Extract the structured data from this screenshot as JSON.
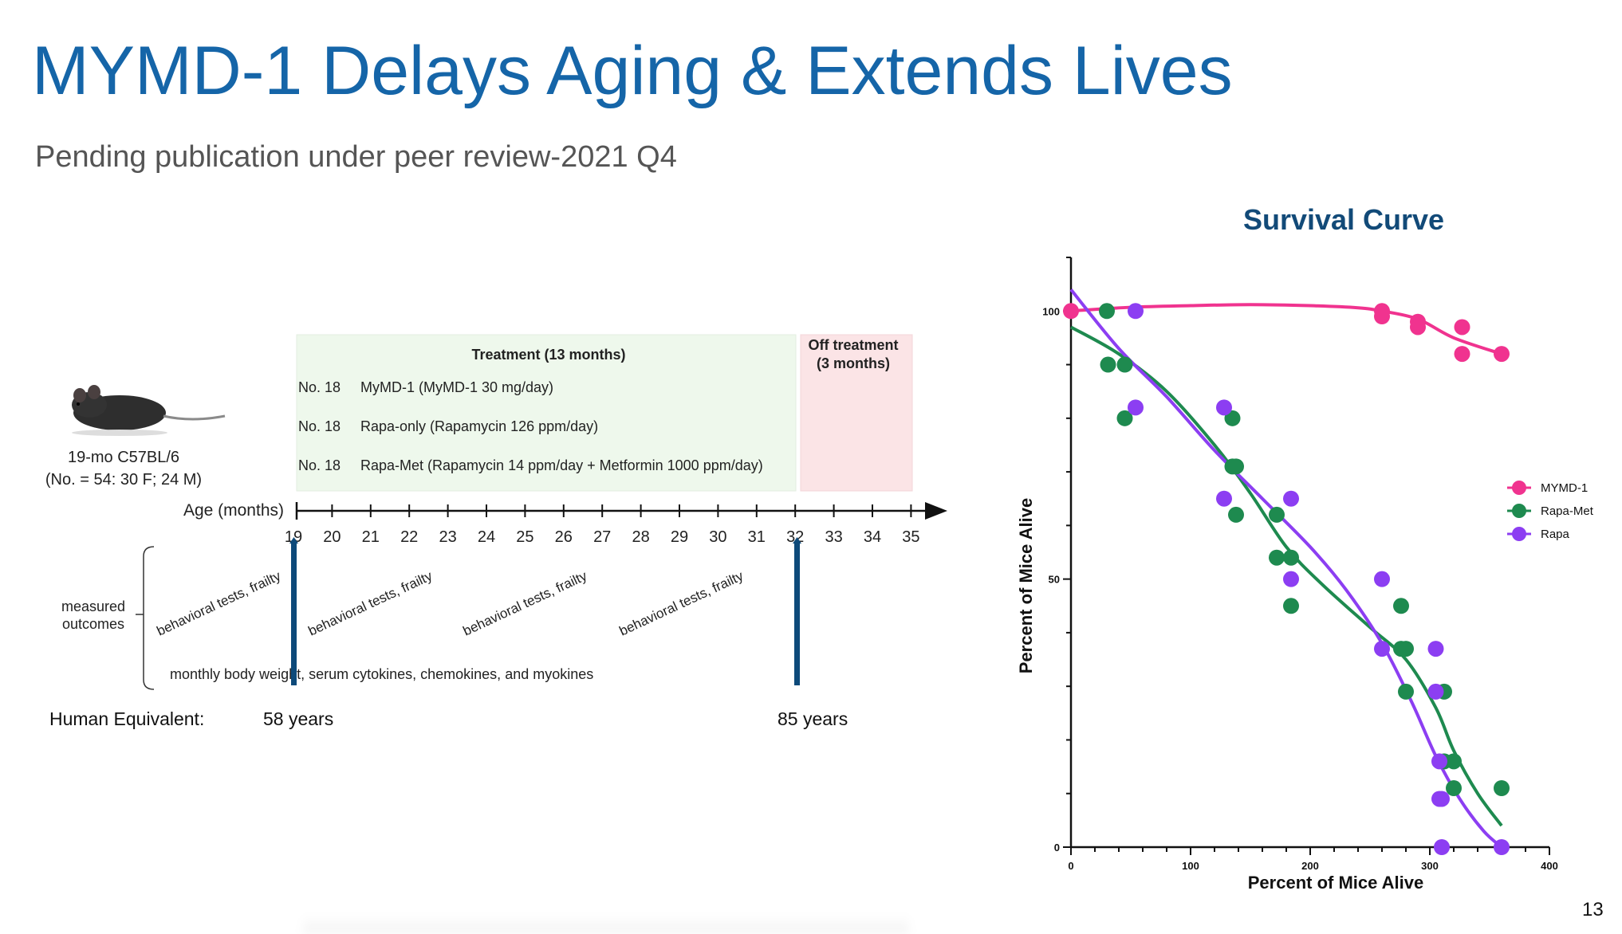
{
  "slide": {
    "title": "MYMD-1 Delays Aging & Extends Lives",
    "subtitle": "Pending publication under peer review-2021 Q4",
    "page_number": "13"
  },
  "study": {
    "mouse_label_1": "19-mo C57BL/6",
    "mouse_label_2": "(No. = 54: 30 F; 24 M)",
    "treatment_header": "Treatment (13 months)",
    "off_header_1": "Off treatment",
    "off_header_2": "(3 months)",
    "groups": [
      {
        "n": "No. 18",
        "desc": "MyMD-1 (MyMD-1 30 mg/day)"
      },
      {
        "n": "No. 18",
        "desc": "Rapa-only (Rapamycin 126 ppm/day)"
      },
      {
        "n": "No. 18",
        "desc": "Rapa-Met (Rapamycin 14 ppm/day + Metformin 1000 ppm/day)"
      }
    ],
    "age_label": "Age (months)",
    "ages": [
      "19",
      "20",
      "21",
      "22",
      "23",
      "24",
      "25",
      "26",
      "27",
      "28",
      "29",
      "30",
      "31",
      "32",
      "33",
      "34",
      "35"
    ],
    "measured_1": "measured",
    "measured_2": "outcomes",
    "behavioral": "behavioral tests, frailty",
    "monthly": "monthly body weight, serum cytokines, chemokines, and myokines",
    "human_label": "Human Equivalent:",
    "human_58": "58 years",
    "human_85": "85 years",
    "colors": {
      "treatment_bg": "#eef8ec",
      "off_bg": "#fbe4e6",
      "marker": "#0d4a7a"
    }
  },
  "chart_data": {
    "type": "scatter",
    "title": "Survival Curve",
    "xlabel": "Percent of Mice Alive",
    "ylabel": "Percent of Mice Alive",
    "xlim": [
      0,
      400
    ],
    "ylim": [
      0,
      110
    ],
    "xticks": [
      "0",
      "100",
      "200",
      "300",
      "400"
    ],
    "yticks": [
      "0",
      "50",
      "100"
    ],
    "legend_position": "right",
    "series": [
      {
        "name": "MYMD-1",
        "color": "#f0338f",
        "points": [
          [
            0,
            100
          ],
          [
            260,
            100
          ],
          [
            260,
            99
          ],
          [
            290,
            98
          ],
          [
            290,
            97
          ],
          [
            327,
            97
          ],
          [
            327,
            92
          ],
          [
            360,
            92
          ]
        ],
        "curve": [
          [
            0,
            100
          ],
          [
            50,
            100.7
          ],
          [
            100,
            101
          ],
          [
            150,
            101.2
          ],
          [
            200,
            101
          ],
          [
            240,
            100.6
          ],
          [
            260,
            100
          ],
          [
            290,
            98.5
          ],
          [
            320,
            95
          ],
          [
            360,
            92
          ]
        ]
      },
      {
        "name": "Rapa-Met",
        "color": "#1e8a4f",
        "points": [
          [
            30,
            100
          ],
          [
            31,
            90
          ],
          [
            45,
            90
          ],
          [
            45,
            80
          ],
          [
            135,
            80
          ],
          [
            135,
            71
          ],
          [
            138,
            71
          ],
          [
            138,
            62
          ],
          [
            172,
            62
          ],
          [
            172,
            54
          ],
          [
            184,
            54
          ],
          [
            184,
            45
          ],
          [
            276,
            45
          ],
          [
            276,
            37
          ],
          [
            280,
            37
          ],
          [
            280,
            29
          ],
          [
            312,
            29
          ],
          [
            312,
            16
          ],
          [
            320,
            16
          ],
          [
            320,
            11
          ],
          [
            360,
            11
          ]
        ],
        "curve": [
          [
            0,
            97
          ],
          [
            40,
            92
          ],
          [
            80,
            85
          ],
          [
            120,
            75
          ],
          [
            150,
            66
          ],
          [
            180,
            56
          ],
          [
            210,
            49
          ],
          [
            250,
            41
          ],
          [
            280,
            35
          ],
          [
            305,
            26
          ],
          [
            320,
            18
          ],
          [
            340,
            10
          ],
          [
            360,
            4
          ]
        ]
      },
      {
        "name": "Rapa",
        "color": "#8c3ef2",
        "points": [
          [
            54,
            100
          ],
          [
            54,
            82
          ],
          [
            128,
            82
          ],
          [
            128,
            65
          ],
          [
            184,
            65
          ],
          [
            184,
            50
          ],
          [
            260,
            50
          ],
          [
            260,
            37
          ],
          [
            305,
            37
          ],
          [
            305,
            29
          ],
          [
            308,
            16
          ],
          [
            308,
            9
          ],
          [
            310,
            9
          ],
          [
            310,
            0
          ],
          [
            360,
            0
          ]
        ],
        "curve": [
          [
            0,
            104
          ],
          [
            40,
            93
          ],
          [
            80,
            84
          ],
          [
            120,
            74
          ],
          [
            160,
            65
          ],
          [
            200,
            56
          ],
          [
            230,
            48
          ],
          [
            260,
            38
          ],
          [
            285,
            27
          ],
          [
            305,
            17
          ],
          [
            325,
            9
          ],
          [
            345,
            3
          ],
          [
            360,
            0
          ]
        ]
      }
    ]
  }
}
